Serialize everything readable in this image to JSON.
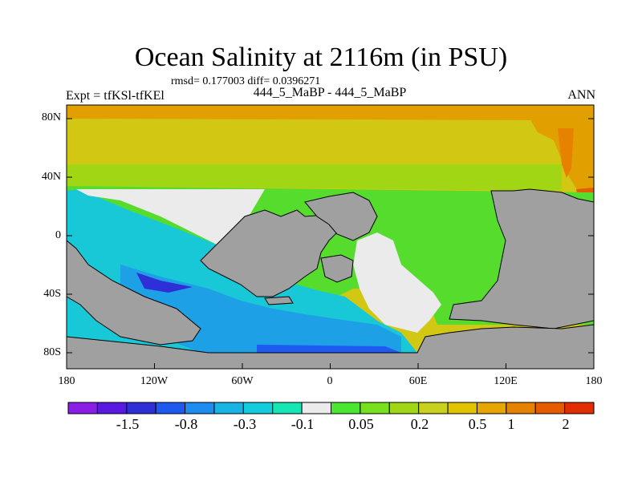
{
  "title": "Ocean Salinity at 2116m (in PSU)",
  "stats": "rmsd= 0.177003 diff= 0.0396271",
  "left_label": "Expt = tfKSl-tfKEl",
  "center_label": "444_5_MaBP - 444_5_MaBP",
  "right_label": "ANN",
  "y_ticks": [
    "80N",
    "40N",
    "0",
    "40S",
    "80S"
  ],
  "x_ticks": [
    "180",
    "120W",
    "60W",
    "0",
    "60E",
    "120E",
    "180"
  ],
  "colorbar": {
    "labels": [
      "-1.5",
      "-0.8",
      "-0.3",
      "-0.1",
      "0.05",
      "0.2",
      "0.5",
      "1",
      "2"
    ],
    "colors": [
      "#8a1ee6",
      "#5a19e0",
      "#2f2fd8",
      "#1e5af0",
      "#1e8cf0",
      "#19b4e6",
      "#14cddc",
      "#14e6b4",
      "#ebebeb",
      "#4be632",
      "#78e11e",
      "#a0d614",
      "#c8d21e",
      "#e1c300",
      "#e6a500",
      "#e68200",
      "#e65a00",
      "#e12d00"
    ]
  },
  "map_colors": {
    "land": "#a0a0a0",
    "arctic_yellow": "#d2c814",
    "arctic_orange": "#e1a000",
    "atlantic_green": "#55dc2d",
    "pacific_cyan": "#19c8d7",
    "southern_blue": "#1ea0e6",
    "neutral": "#ebebeb"
  }
}
